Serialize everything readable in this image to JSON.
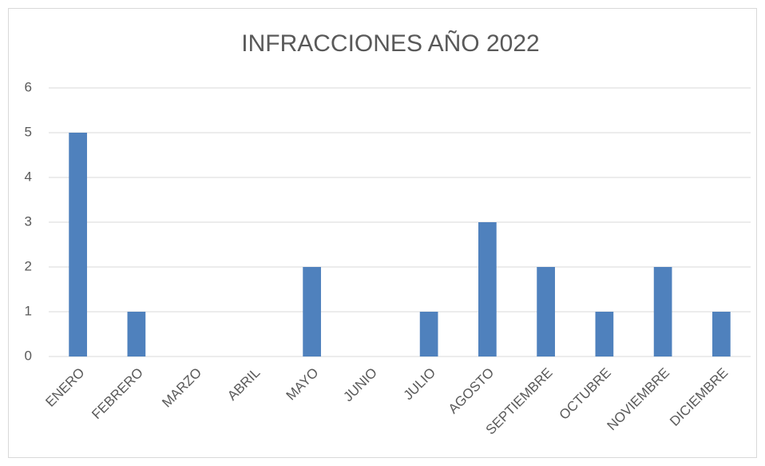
{
  "chart_data": {
    "type": "bar",
    "title": "INFRACCIONES AÑO 2022",
    "categories": [
      "ENERO",
      "FEBRERO",
      "MARZO",
      "ABRIL",
      "MAYO",
      "JUNIO",
      "JULIO",
      "AGOSTO",
      "SEPTIEMBRE",
      "OCTUBRE",
      "NOVIEMBRE",
      "DICIEMBRE"
    ],
    "values": [
      5,
      1,
      0,
      0,
      2,
      0,
      1,
      3,
      2,
      1,
      2,
      1
    ],
    "color": "#4f81bd",
    "ylim": [
      0,
      6
    ],
    "yticks": [
      0,
      1,
      2,
      3,
      4,
      5,
      6
    ],
    "grid": true
  }
}
